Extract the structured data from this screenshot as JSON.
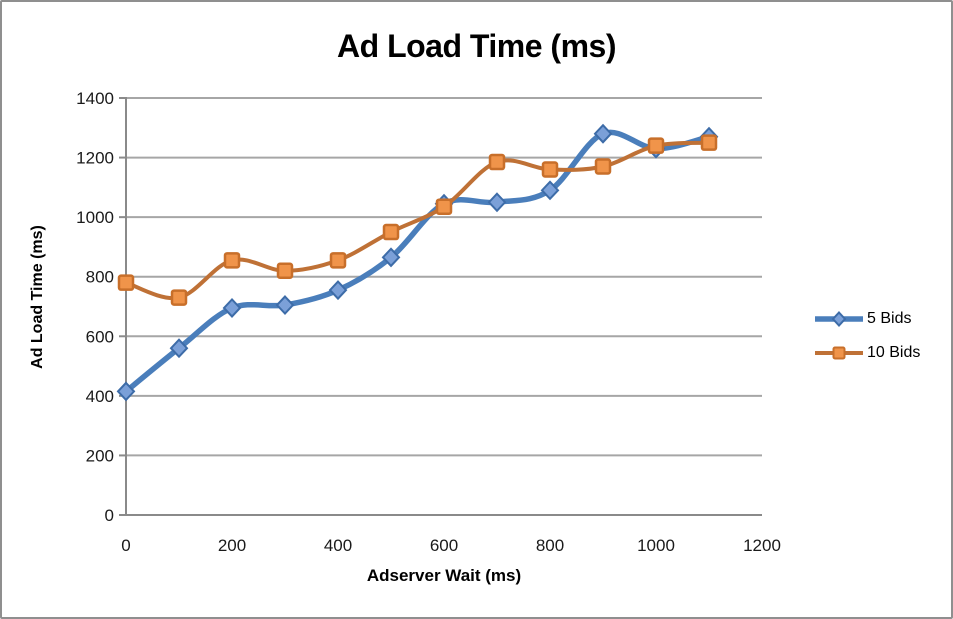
{
  "chart_data": {
    "type": "line",
    "title": "Ad Load Time (ms)",
    "xlabel": "Adserver Wait (ms)",
    "ylabel": "Ad Load Time (ms)",
    "x": [
      0,
      100,
      200,
      300,
      400,
      500,
      600,
      700,
      800,
      900,
      1000,
      1100
    ],
    "series": [
      {
        "name": "5 Bids",
        "marker": "diamond",
        "line_color": "#4a7ebb",
        "marker_fill": "#7ba0d8",
        "marker_stroke": "#3d6ca8",
        "values": [
          415,
          560,
          695,
          705,
          755,
          865,
          1045,
          1050,
          1090,
          1280,
          1230,
          1270
        ]
      },
      {
        "name": "10 Bids",
        "marker": "square",
        "line_color": "#bf7136",
        "marker_fill": "#f0944a",
        "marker_stroke": "#c86f2a",
        "values": [
          780,
          730,
          855,
          820,
          855,
          950,
          1035,
          1185,
          1160,
          1170,
          1240,
          1250
        ]
      }
    ],
    "xlim": [
      0,
      1200
    ],
    "ylim": [
      0,
      1400
    ],
    "x_ticks": [
      0,
      200,
      400,
      600,
      800,
      1000,
      1200
    ],
    "y_ticks": [
      0,
      200,
      400,
      600,
      800,
      1000,
      1200,
      1400
    ],
    "grid": "horizontal",
    "legend_position": "right",
    "smoothed_lines": true
  },
  "colors": {
    "gridline": "#a6a6a6",
    "axis": "#8a8a8a",
    "tick_text": "#1a1a1a",
    "figure_border": "#8f8f8f",
    "background": "#ffffff"
  }
}
